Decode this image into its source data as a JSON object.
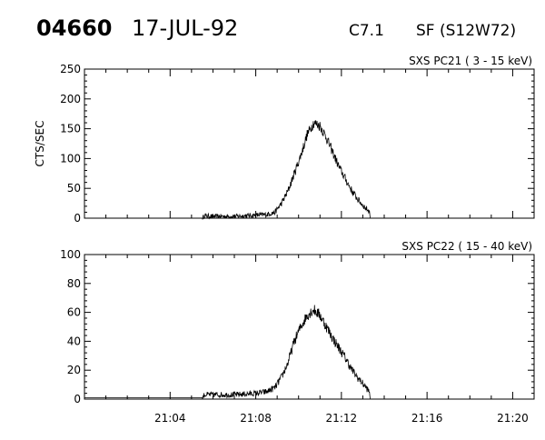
{
  "header": {
    "event_id": "04660",
    "date": "17-JUL-92",
    "goes_class": "C7.1",
    "location": "SF (S12W72)"
  },
  "chart_data": [
    {
      "type": "line",
      "title": "SXS PC21  (  3 - 15 keV)",
      "ylabel": "CTS/SEC",
      "xlabel": "",
      "xlim": [
        "21:00",
        "21:21"
      ],
      "ylim": [
        0,
        250
      ],
      "yticks": [
        0,
        50,
        100,
        150,
        200,
        250
      ],
      "xticks": [
        "21:04",
        "21:08",
        "21:12",
        "21:16",
        "21:20"
      ],
      "grid": false,
      "noise": 9,
      "series": [
        {
          "x": [
            "21:00",
            "21:05.5",
            "21:05.6",
            "21:06",
            "21:07",
            "21:08",
            "21:08.5",
            "21:08.9",
            "21:09.2",
            "21:09.5",
            "21:09.8",
            "21:10.1",
            "21:10.4",
            "21:10.7",
            "21:11.0",
            "21:11.3",
            "21:11.6",
            "21:11.9",
            "21:12.2",
            "21:12.5",
            "21:12.8",
            "21:13.1",
            "21:13.3",
            "21:13.35"
          ],
          "values": [
            0,
            0,
            4,
            3,
            3,
            5,
            6,
            10,
            25,
            45,
            75,
            105,
            140,
            160,
            155,
            135,
            110,
            85,
            65,
            45,
            30,
            18,
            12,
            0
          ]
        }
      ]
    },
    {
      "type": "line",
      "title": "SXS PC22  ( 15 - 40 keV)",
      "ylabel": "",
      "xlabel": "",
      "xlim": [
        "21:00",
        "21:21"
      ],
      "ylim": [
        0,
        100
      ],
      "yticks": [
        0,
        20,
        40,
        60,
        80,
        100
      ],
      "xticks": [
        "21:04",
        "21:08",
        "21:12",
        "21:16",
        "21:20"
      ],
      "grid": false,
      "noise": 4,
      "series": [
        {
          "x": [
            "21:00",
            "21:05.5",
            "21:05.6",
            "21:06",
            "21:07",
            "21:08",
            "21:08.5",
            "21:08.9",
            "21:09.2",
            "21:09.5",
            "21:09.8",
            "21:10.1",
            "21:10.4",
            "21:10.7",
            "21:11.0",
            "21:11.3",
            "21:11.6",
            "21:11.9",
            "21:12.2",
            "21:12.5",
            "21:12.8",
            "21:13.1",
            "21:13.3",
            "21:13.35"
          ],
          "values": [
            1,
            1,
            3,
            3,
            3,
            4,
            5,
            8,
            15,
            25,
            40,
            50,
            58,
            62,
            58,
            50,
            42,
            35,
            28,
            20,
            14,
            9,
            5,
            0
          ]
        }
      ]
    }
  ]
}
